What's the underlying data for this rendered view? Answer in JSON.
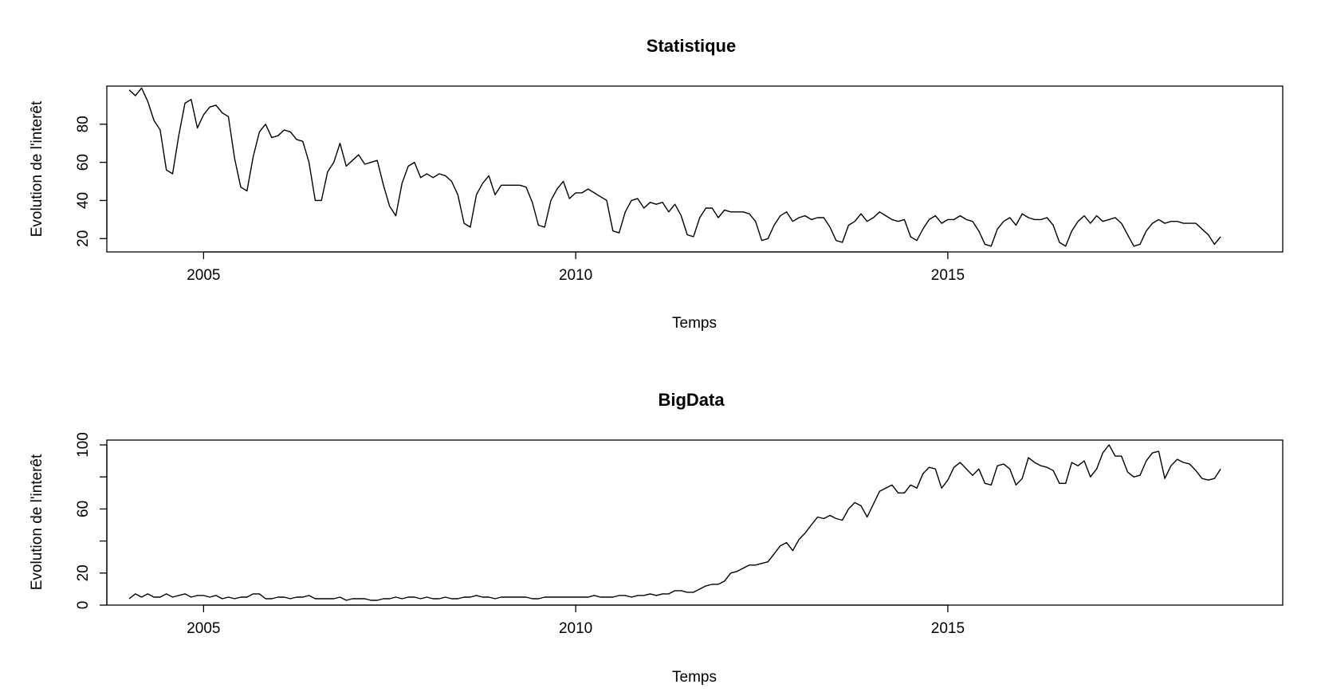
{
  "chart_data": [
    {
      "type": "line",
      "title": "Statistique",
      "xlabel": "Temps",
      "ylabel": "Evolution de l'interêt",
      "xlim": [
        2003.7,
        2019.5
      ],
      "ylim": [
        13,
        100
      ],
      "x_ticks": [
        2005,
        2010,
        2015
      ],
      "y_ticks": [
        20,
        40,
        60,
        80
      ],
      "grid": false,
      "x_start": 2004.0,
      "x_step": 0.08333,
      "series": [
        {
          "values": [
            98,
            95,
            99,
            92,
            82,
            77,
            56,
            54,
            74,
            91,
            93,
            78,
            85,
            89,
            90,
            86,
            84,
            62,
            47,
            45,
            63,
            76,
            80,
            73,
            74,
            77,
            76,
            72,
            71,
            60,
            40,
            40,
            55,
            60,
            70,
            58,
            61,
            64,
            59,
            60,
            61,
            48,
            37,
            32,
            49,
            58,
            60,
            52,
            54,
            52,
            54,
            53,
            50,
            43,
            28,
            26,
            43,
            49,
            53,
            43,
            48,
            48,
            48,
            48,
            47,
            39,
            27,
            26,
            40,
            46,
            50,
            41,
            44,
            44,
            46,
            44,
            42,
            40,
            24,
            23,
            34,
            40,
            41,
            36,
            39,
            38,
            39,
            34,
            38,
            32,
            22,
            21,
            31,
            36,
            36,
            31,
            35,
            34,
            34,
            34,
            33,
            29,
            19,
            20,
            27,
            32,
            34,
            29,
            31,
            32,
            30,
            31,
            31,
            26,
            19,
            18,
            27,
            29,
            33,
            29,
            31,
            34,
            32,
            30,
            29,
            30,
            21,
            19,
            25,
            30,
            32,
            28,
            30,
            30,
            32,
            30,
            29,
            24,
            17,
            16,
            25,
            29,
            31,
            27,
            33,
            31,
            30,
            30,
            31,
            27,
            18,
            16,
            24,
            29,
            32,
            28,
            32,
            29,
            30,
            31,
            28,
            22,
            16,
            17,
            24,
            28,
            30,
            28,
            29,
            29,
            28,
            28,
            28,
            25,
            22,
            17,
            21
          ]
        }
      ]
    },
    {
      "type": "line",
      "title": "BigData",
      "xlabel": "Temps",
      "ylabel": "Evolution de l'interêt",
      "xlim": [
        2003.7,
        2019.5
      ],
      "ylim": [
        0,
        103
      ],
      "x_ticks": [
        2005,
        2010,
        2015
      ],
      "y_ticks": [
        0,
        20,
        60,
        100
      ],
      "y_minor_ticks": [
        40,
        80
      ],
      "grid": false,
      "x_start": 2004.0,
      "x_step": 0.08333,
      "series": [
        {
          "values": [
            4,
            7,
            5,
            7,
            5,
            5,
            7,
            5,
            6,
            7,
            5,
            6,
            6,
            5,
            6,
            4,
            5,
            4,
            5,
            5,
            7,
            7,
            4,
            4,
            5,
            5,
            4,
            5,
            5,
            6,
            4,
            4,
            4,
            4,
            5,
            3,
            4,
            4,
            4,
            3,
            3,
            4,
            4,
            5,
            4,
            5,
            5,
            4,
            5,
            4,
            4,
            5,
            4,
            4,
            5,
            5,
            6,
            5,
            5,
            4,
            5,
            5,
            5,
            5,
            5,
            4,
            4,
            5,
            5,
            5,
            5,
            5,
            5,
            5,
            5,
            6,
            5,
            5,
            5,
            6,
            6,
            5,
            6,
            6,
            7,
            6,
            7,
            7,
            9,
            9,
            8,
            8,
            10,
            12,
            13,
            13,
            15,
            20,
            21,
            23,
            25,
            25,
            26,
            27,
            32,
            37,
            39,
            34,
            41,
            45,
            50,
            55,
            54,
            56,
            54,
            53,
            60,
            64,
            62,
            55,
            63,
            71,
            73,
            75,
            70,
            70,
            75,
            73,
            82,
            86,
            85,
            73,
            78,
            86,
            89,
            85,
            81,
            85,
            76,
            75,
            87,
            88,
            85,
            75,
            79,
            92,
            89,
            87,
            86,
            84,
            76,
            76,
            89,
            87,
            90,
            80,
            85,
            95,
            100,
            93,
            93,
            83,
            80,
            81,
            90,
            95,
            96,
            79,
            87,
            91,
            89,
            88,
            84,
            79,
            78,
            79,
            85
          ]
        }
      ]
    }
  ]
}
